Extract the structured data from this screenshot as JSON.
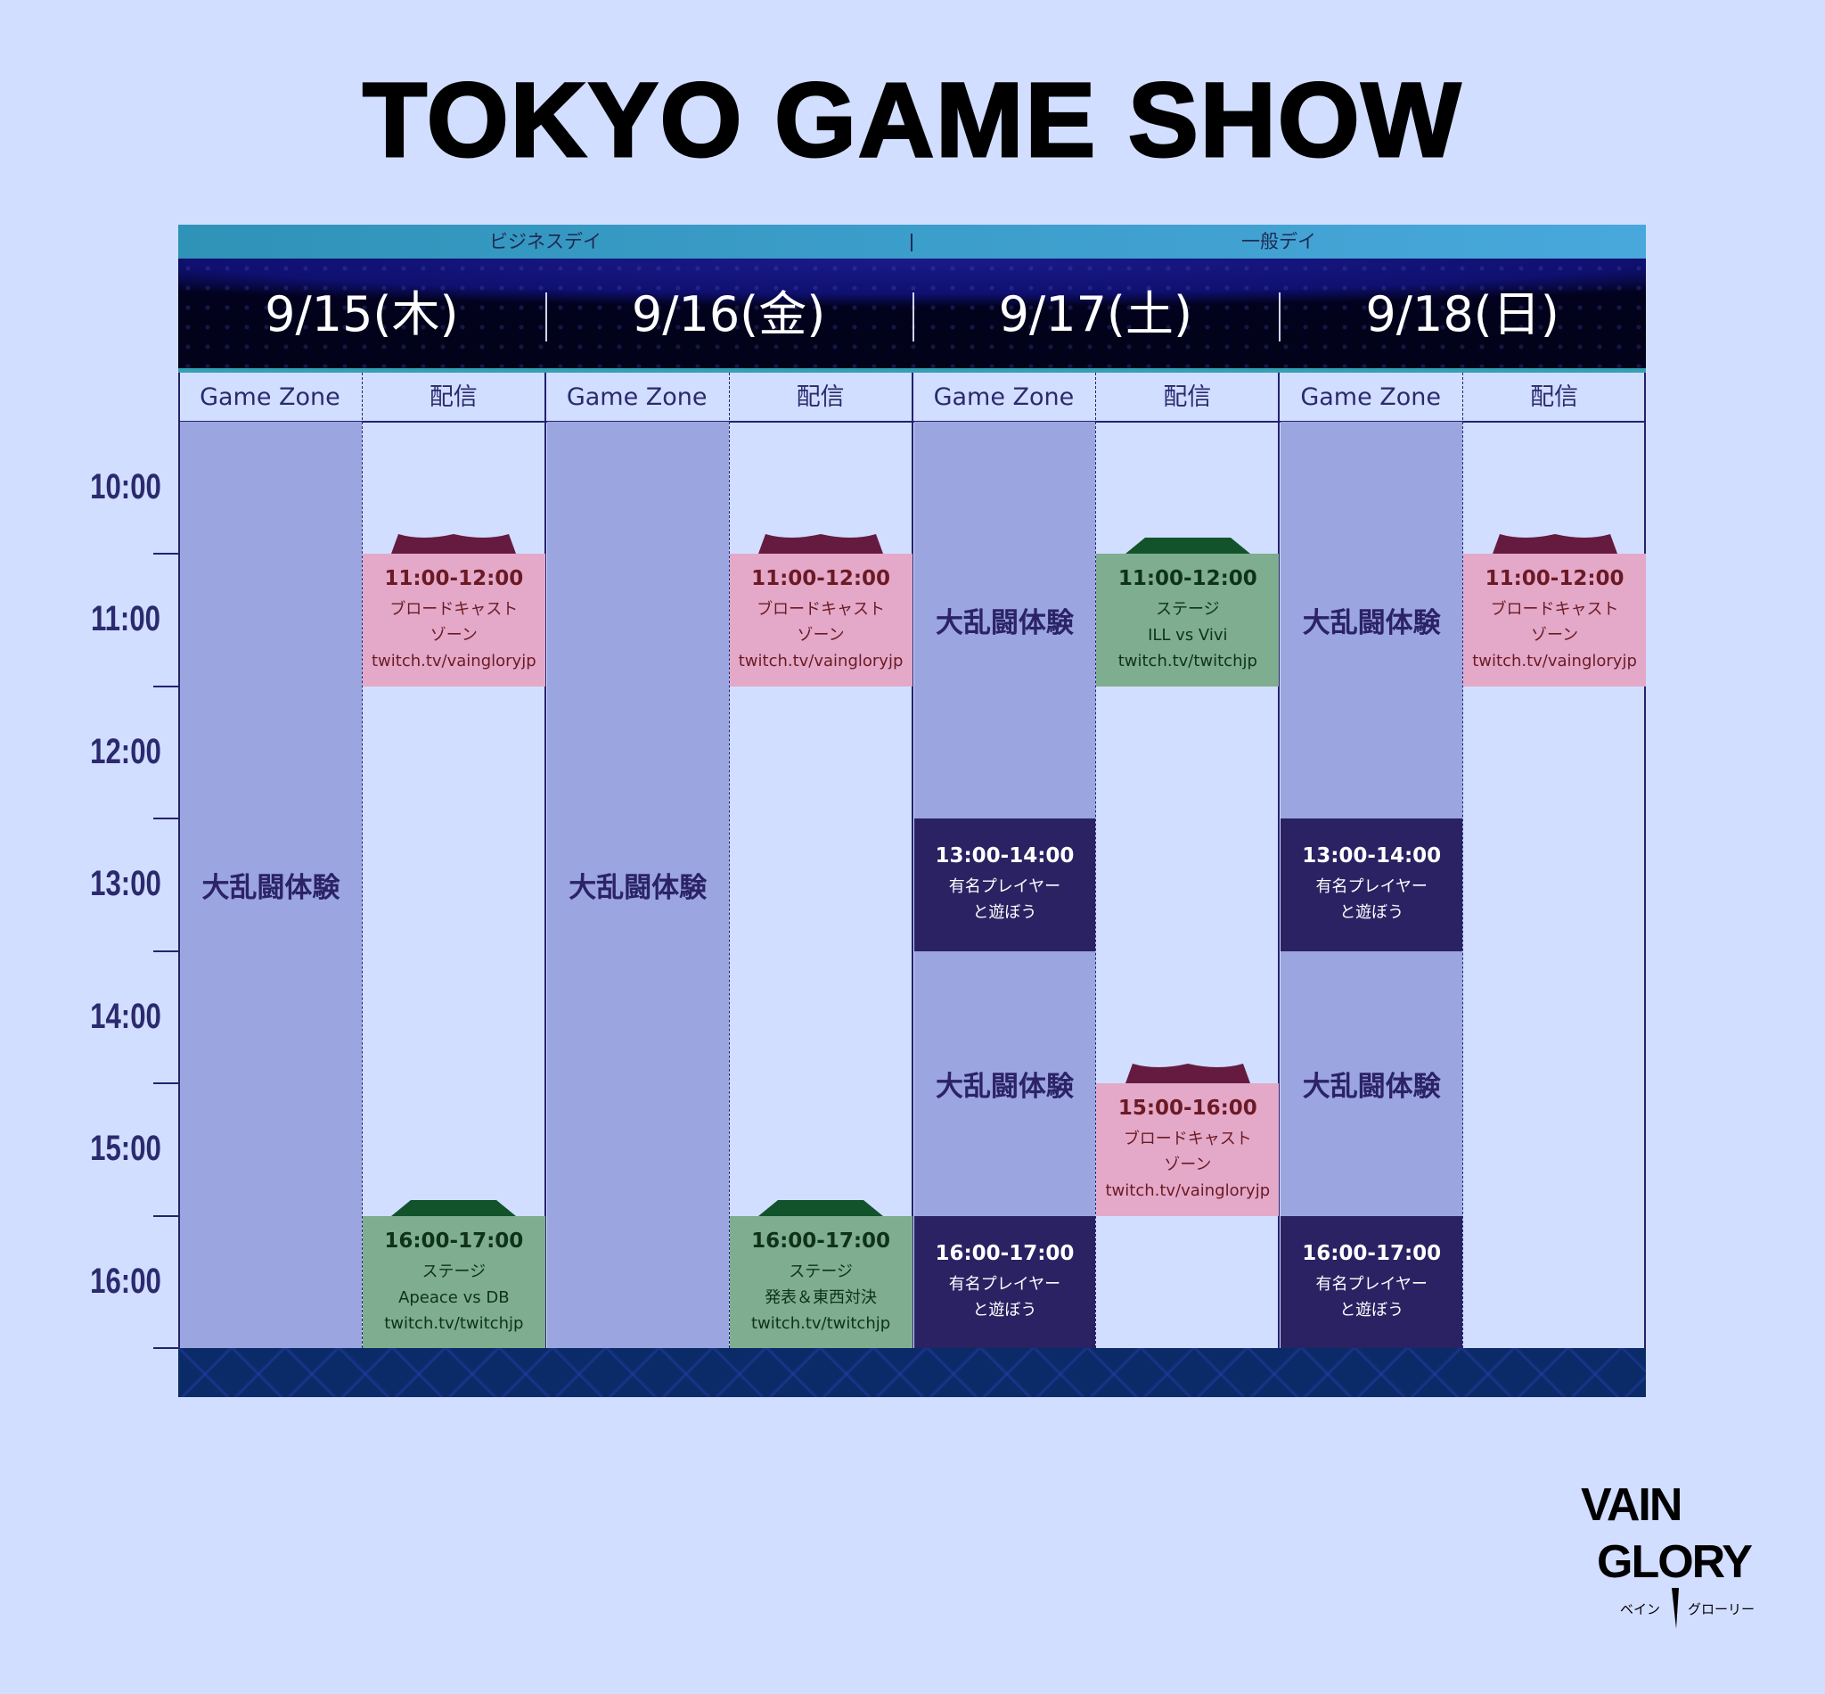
{
  "title": "TOKYO GAME SHOW",
  "top_band": {
    "business_day": "ビジネスデイ",
    "general_day": "一般デイ"
  },
  "days": [
    "9/15(木)",
    "9/16(金)",
    "9/17(土)",
    "9/18(日)"
  ],
  "column_headers": {
    "game_zone": "Game Zone",
    "stream": "配信"
  },
  "time_labels": [
    "10:00",
    "11:00",
    "12:00",
    "13:00",
    "14:00",
    "15:00",
    "16:00"
  ],
  "schedule_hours": [
    10,
    17
  ],
  "colors": {
    "background": "#d2deff",
    "game_zone": "#9ba5e0",
    "featured": "#2a2263",
    "broadcast": "#e4a9c8",
    "broadcast_tab": "#651b40",
    "stage": "#7fad8f",
    "stage_tab": "#12532b",
    "grid": "#24226e"
  },
  "events": [
    {
      "day": 0,
      "col": "game_zone",
      "type": "gz",
      "start": 10,
      "end": 17,
      "title": "大乱闘体験"
    },
    {
      "day": 0,
      "col": "stream",
      "type": "pink",
      "start": 11,
      "end": 12,
      "time": "11:00-12:00",
      "lines": [
        "ブロードキャスト",
        "ゾーン",
        "twitch.tv/vaingloryjp"
      ]
    },
    {
      "day": 0,
      "col": "stream",
      "type": "green",
      "start": 16,
      "end": 17,
      "time": "16:00-17:00",
      "lines": [
        "ステージ",
        "Apeace vs DB",
        "twitch.tv/twitchjp"
      ]
    },
    {
      "day": 1,
      "col": "game_zone",
      "type": "gz",
      "start": 10,
      "end": 17,
      "title": "大乱闘体験"
    },
    {
      "day": 1,
      "col": "stream",
      "type": "pink",
      "start": 11,
      "end": 12,
      "time": "11:00-12:00",
      "lines": [
        "ブロードキャスト",
        "ゾーン",
        "twitch.tv/vaingloryjp"
      ]
    },
    {
      "day": 1,
      "col": "stream",
      "type": "green",
      "start": 16,
      "end": 17,
      "time": "16:00-17:00",
      "lines": [
        "ステージ",
        "発表＆東西対決",
        "twitch.tv/twitchjp"
      ]
    },
    {
      "day": 2,
      "col": "game_zone",
      "type": "gz",
      "start": 10,
      "end": 13,
      "title": "大乱闘体験"
    },
    {
      "day": 2,
      "col": "game_zone",
      "type": "dark",
      "start": 13,
      "end": 14,
      "time": "13:00-14:00",
      "lines": [
        "有名プレイヤー",
        "と遊ぼう"
      ]
    },
    {
      "day": 2,
      "col": "game_zone",
      "type": "gz",
      "start": 14,
      "end": 16,
      "title": "大乱闘体験"
    },
    {
      "day": 2,
      "col": "game_zone",
      "type": "dark",
      "start": 16,
      "end": 17,
      "time": "16:00-17:00",
      "lines": [
        "有名プレイヤー",
        "と遊ぼう"
      ]
    },
    {
      "day": 2,
      "col": "stream",
      "type": "green",
      "start": 11,
      "end": 12,
      "time": "11:00-12:00",
      "lines": [
        "ステージ",
        "ILL vs Vivi",
        "twitch.tv/twitchjp"
      ]
    },
    {
      "day": 2,
      "col": "stream",
      "type": "pink",
      "start": 15,
      "end": 16,
      "time": "15:00-16:00",
      "lines": [
        "ブロードキャスト",
        "ゾーン",
        "twitch.tv/vaingloryjp"
      ]
    },
    {
      "day": 3,
      "col": "game_zone",
      "type": "gz",
      "start": 10,
      "end": 13,
      "title": "大乱闘体験"
    },
    {
      "day": 3,
      "col": "game_zone",
      "type": "dark",
      "start": 13,
      "end": 14,
      "time": "13:00-14:00",
      "lines": [
        "有名プレイヤー",
        "と遊ぼう"
      ]
    },
    {
      "day": 3,
      "col": "game_zone",
      "type": "gz",
      "start": 14,
      "end": 16,
      "title": "大乱闘体験"
    },
    {
      "day": 3,
      "col": "game_zone",
      "type": "dark",
      "start": 16,
      "end": 17,
      "time": "16:00-17:00",
      "lines": [
        "有名プレイヤー",
        "と遊ぼう"
      ]
    },
    {
      "day": 3,
      "col": "stream",
      "type": "pink",
      "start": 11,
      "end": 12,
      "time": "11:00-12:00",
      "lines": [
        "ブロードキャスト",
        "ゾーン",
        "twitch.tv/vaingloryjp"
      ]
    }
  ],
  "logo": {
    "line1": "VAIN",
    "line2": "GLORY",
    "kana_left": "ベイン",
    "kana_right": "グローリー"
  }
}
